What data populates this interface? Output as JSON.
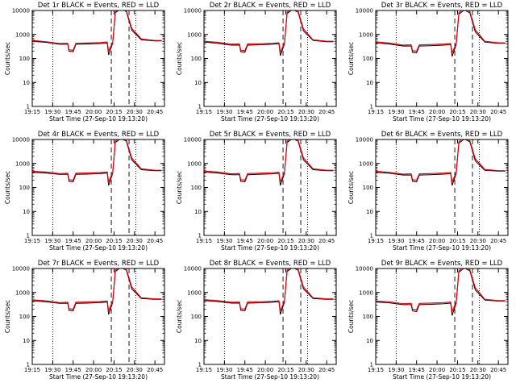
{
  "xtick_labels": [
    "19:15",
    "19:30",
    "19:45",
    "20:00",
    "20:15",
    "20:30",
    "20:45"
  ],
  "ytick_labels": [
    "1",
    "10",
    "100",
    "1000",
    "10000"
  ],
  "colors": {
    "events": "#000000",
    "lld": "#e8000b",
    "axes": "#000000",
    "background": "#ffffff"
  },
  "chart_data": [
    {
      "type": "line",
      "title": "Det 1r BLACK = Events, RED = LLD",
      "xlabel": "Start Time (27-Sep-10 19:13:20)",
      "ylabel": "Counts/sec",
      "yscale": "log",
      "ylim": [
        1,
        10000
      ],
      "xlim": [
        "19:15",
        "20:52"
      ],
      "x": [
        "19:15",
        "19:25",
        "19:35",
        "19:41",
        "19:42",
        "19:45",
        "19:47",
        "19:55",
        "20:05",
        "20:10",
        "20:11",
        "20:14",
        "20:16",
        "20:20",
        "20:24",
        "20:28",
        "20:35",
        "20:45",
        "20:50"
      ],
      "series": [
        {
          "name": "BLACK = Events",
          "values": [
            520,
            470,
            390,
            390,
            200,
            190,
            390,
            400,
            420,
            440,
            140,
            430,
            8000,
            12000,
            9000,
            1500,
            600,
            540,
            540
          ]
        },
        {
          "name": "RED = LLD",
          "values": [
            560,
            500,
            420,
            430,
            230,
            220,
            430,
            440,
            460,
            480,
            200,
            470,
            9000,
            14000,
            10000,
            1800,
            650,
            560,
            560
          ]
        }
      ],
      "vlines": {
        "dotted": [
          "19:30",
          "20:31"
        ],
        "dashed": [
          "20:13",
          "20:26"
        ]
      }
    },
    {
      "type": "line",
      "title": "Det 2r BLACK = Events, RED = LLD",
      "xlabel": "Start Time (27-Sep-10 19:13:20)",
      "ylabel": "Counts/sec",
      "yscale": "log",
      "ylim": [
        1,
        10000
      ],
      "xlim": [
        "19:15",
        "20:52"
      ],
      "x": [
        "19:15",
        "19:25",
        "19:35",
        "19:41",
        "19:42",
        "19:45",
        "19:47",
        "19:55",
        "20:05",
        "20:10",
        "20:11",
        "20:14",
        "20:16",
        "20:20",
        "20:24",
        "20:28",
        "20:35",
        "20:45",
        "20:50"
      ],
      "series": [
        {
          "name": "BLACK = Events",
          "values": [
            480,
            430,
            360,
            360,
            190,
            180,
            360,
            370,
            390,
            410,
            130,
            400,
            7500,
            11000,
            8500,
            1400,
            560,
            500,
            500
          ]
        },
        {
          "name": "RED = LLD",
          "values": [
            520,
            470,
            390,
            400,
            220,
            210,
            400,
            410,
            430,
            450,
            180,
            440,
            8500,
            13000,
            9500,
            1700,
            600,
            520,
            520
          ]
        }
      ],
      "vlines": {
        "dotted": [
          "19:30",
          "20:31"
        ],
        "dashed": [
          "20:13",
          "20:26"
        ]
      }
    },
    {
      "type": "line",
      "title": "Det 3r BLACK = Events, RED = LLD",
      "xlabel": "Start Time (27-Sep-10 19:13:20)",
      "ylabel": "Counts/sec",
      "yscale": "log",
      "ylim": [
        1,
        10000
      ],
      "xlim": [
        "19:15",
        "20:52"
      ],
      "x": [
        "19:15",
        "19:25",
        "19:35",
        "19:41",
        "19:42",
        "19:45",
        "19:47",
        "19:55",
        "20:05",
        "20:10",
        "20:11",
        "20:14",
        "20:16",
        "20:20",
        "20:24",
        "20:28",
        "20:35",
        "20:45",
        "20:50"
      ],
      "series": [
        {
          "name": "BLACK = Events",
          "values": [
            450,
            400,
            330,
            330,
            180,
            170,
            330,
            340,
            360,
            380,
            120,
            370,
            7000,
            10500,
            8000,
            1300,
            480,
            430,
            430
          ]
        },
        {
          "name": "RED = LLD",
          "values": [
            490,
            440,
            360,
            370,
            210,
            200,
            370,
            380,
            400,
            420,
            170,
            410,
            8000,
            12500,
            9000,
            1600,
            520,
            450,
            450
          ]
        }
      ],
      "vlines": {
        "dotted": [
          "19:30",
          "20:31"
        ],
        "dashed": [
          "20:13",
          "20:26"
        ]
      }
    },
    {
      "type": "line",
      "title": "Det 4r BLACK = Events, RED = LLD",
      "xlabel": "Start Time (27-Sep-10 19:13:20)",
      "ylabel": "Counts/sec",
      "yscale": "log",
      "ylim": [
        1,
        10000
      ],
      "xlim": [
        "19:15",
        "20:52"
      ],
      "x": [
        "19:15",
        "19:25",
        "19:35",
        "19:41",
        "19:42",
        "19:45",
        "19:47",
        "19:55",
        "20:05",
        "20:10",
        "20:11",
        "20:14",
        "20:16",
        "20:20",
        "20:24",
        "20:28",
        "20:35",
        "20:45",
        "20:50"
      ],
      "series": [
        {
          "name": "BLACK = Events",
          "values": [
            430,
            400,
            350,
            350,
            180,
            170,
            350,
            360,
            380,
            400,
            120,
            390,
            7500,
            11000,
            8500,
            1400,
            550,
            500,
            500
          ]
        },
        {
          "name": "RED = LLD",
          "values": [
            470,
            440,
            380,
            390,
            210,
            200,
            390,
            400,
            420,
            440,
            170,
            430,
            8500,
            13000,
            9500,
            1700,
            600,
            520,
            520
          ]
        }
      ],
      "vlines": {
        "dotted": [
          "19:30",
          "20:31"
        ],
        "dashed": [
          "20:13",
          "20:26"
        ]
      }
    },
    {
      "type": "line",
      "title": "Det 5r BLACK = Events, RED = LLD",
      "xlabel": "Start Time (27-Sep-10 19:13:20)",
      "ylabel": "Counts/sec",
      "yscale": "log",
      "ylim": [
        1,
        10000
      ],
      "xlim": [
        "19:15",
        "20:52"
      ],
      "x": [
        "19:15",
        "19:25",
        "19:35",
        "19:41",
        "19:42",
        "19:45",
        "19:47",
        "19:55",
        "20:05",
        "20:10",
        "20:11",
        "20:14",
        "20:16",
        "20:20",
        "20:24",
        "20:28",
        "20:35",
        "20:45",
        "20:50"
      ],
      "series": [
        {
          "name": "BLACK = Events",
          "values": [
            440,
            400,
            340,
            340,
            180,
            170,
            340,
            350,
            370,
            390,
            120,
            380,
            7500,
            11000,
            8500,
            1400,
            550,
            500,
            500
          ]
        },
        {
          "name": "RED = LLD",
          "values": [
            480,
            440,
            370,
            380,
            210,
            200,
            380,
            390,
            410,
            430,
            170,
            420,
            8500,
            13000,
            9500,
            1700,
            600,
            520,
            520
          ]
        }
      ],
      "vlines": {
        "dotted": [
          "19:30",
          "20:31"
        ],
        "dashed": [
          "20:13",
          "20:26"
        ]
      }
    },
    {
      "type": "line",
      "title": "Det 6r BLACK = Events, RED = LLD",
      "xlabel": "Start Time (27-Sep-10 19:13:20)",
      "ylabel": "Counts/sec",
      "yscale": "log",
      "ylim": [
        1,
        10000
      ],
      "xlim": [
        "19:15",
        "20:52"
      ],
      "x": [
        "19:15",
        "19:25",
        "19:35",
        "19:41",
        "19:42",
        "19:45",
        "19:47",
        "19:55",
        "20:05",
        "20:10",
        "20:11",
        "20:14",
        "20:16",
        "20:20",
        "20:24",
        "20:28",
        "20:35",
        "20:45",
        "20:50"
      ],
      "series": [
        {
          "name": "BLACK = Events",
          "values": [
            430,
            390,
            330,
            330,
            180,
            170,
            330,
            340,
            360,
            380,
            120,
            370,
            7000,
            10500,
            8000,
            1300,
            520,
            480,
            480
          ]
        },
        {
          "name": "RED = LLD",
          "values": [
            470,
            430,
            360,
            370,
            210,
            200,
            370,
            380,
            400,
            420,
            170,
            410,
            8000,
            12500,
            9000,
            1600,
            560,
            500,
            500
          ]
        }
      ],
      "vlines": {
        "dotted": [
          "19:30",
          "20:31"
        ],
        "dashed": [
          "20:13",
          "20:26"
        ]
      }
    },
    {
      "type": "line",
      "title": "Det 7r BLACK = Events, RED = LLD",
      "xlabel": "Start Time (27-Sep-10 19:13:20)",
      "ylabel": "Counts/sec",
      "yscale": "log",
      "ylim": [
        1,
        10000
      ],
      "xlim": [
        "19:15",
        "20:52"
      ],
      "x": [
        "19:15",
        "19:25",
        "19:35",
        "19:41",
        "19:42",
        "19:45",
        "19:47",
        "19:55",
        "20:05",
        "20:10",
        "20:11",
        "20:14",
        "20:16",
        "20:20",
        "20:24",
        "20:28",
        "20:35",
        "20:45",
        "20:50"
      ],
      "series": [
        {
          "name": "BLACK = Events",
          "values": [
            450,
            410,
            350,
            350,
            180,
            170,
            350,
            360,
            380,
            400,
            120,
            390,
            7500,
            11000,
            8500,
            1400,
            560,
            520,
            520
          ]
        },
        {
          "name": "RED = LLD",
          "values": [
            490,
            450,
            380,
            390,
            210,
            200,
            390,
            400,
            420,
            440,
            170,
            430,
            8500,
            13000,
            9500,
            1700,
            600,
            540,
            540
          ]
        }
      ],
      "vlines": {
        "dotted": [
          "19:30",
          "20:31"
        ],
        "dashed": [
          "20:13",
          "20:26"
        ]
      }
    },
    {
      "type": "line",
      "title": "Det 8r BLACK = Events, RED = LLD",
      "xlabel": "Start Time (27-Sep-10 19:13:20)",
      "ylabel": "Counts/sec",
      "yscale": "log",
      "ylim": [
        1,
        10000
      ],
      "xlim": [
        "19:15",
        "20:52"
      ],
      "x": [
        "19:15",
        "19:25",
        "19:35",
        "19:41",
        "19:42",
        "19:45",
        "19:47",
        "19:55",
        "20:05",
        "20:10",
        "20:11",
        "20:14",
        "20:16",
        "20:20",
        "20:24",
        "20:28",
        "20:35",
        "20:45",
        "20:50"
      ],
      "series": [
        {
          "name": "BLACK = Events",
          "values": [
            460,
            420,
            360,
            360,
            180,
            170,
            360,
            370,
            390,
            410,
            120,
            400,
            7500,
            11000,
            8500,
            1400,
            560,
            520,
            520
          ]
        },
        {
          "name": "RED = LLD",
          "values": [
            500,
            460,
            390,
            400,
            210,
            200,
            400,
            410,
            430,
            450,
            170,
            440,
            8500,
            13000,
            9500,
            1700,
            600,
            540,
            540
          ]
        }
      ],
      "vlines": {
        "dotted": [
          "19:30",
          "20:31"
        ],
        "dashed": [
          "20:13",
          "20:26"
        ]
      }
    },
    {
      "type": "line",
      "title": "Det 9r BLACK = Events, RED = LLD",
      "xlabel": "Start Time (27-Sep-10 19:13:20)",
      "ylabel": "Counts/sec",
      "yscale": "log",
      "ylim": [
        1,
        10000
      ],
      "xlim": [
        "19:15",
        "20:52"
      ],
      "x": [
        "19:15",
        "19:25",
        "19:35",
        "19:41",
        "19:42",
        "19:45",
        "19:47",
        "19:55",
        "20:05",
        "20:10",
        "20:11",
        "20:14",
        "20:16",
        "20:20",
        "20:24",
        "20:28",
        "20:35",
        "20:45",
        "20:50"
      ],
      "series": [
        {
          "name": "BLACK = Events",
          "values": [
            400,
            370,
            310,
            310,
            170,
            160,
            310,
            320,
            340,
            360,
            110,
            350,
            7000,
            10500,
            8000,
            1300,
            480,
            440,
            440
          ]
        },
        {
          "name": "RED = LLD",
          "values": [
            440,
            410,
            340,
            350,
            200,
            190,
            350,
            360,
            380,
            400,
            160,
            390,
            8000,
            12500,
            9000,
            1600,
            520,
            460,
            460
          ]
        }
      ],
      "vlines": {
        "dotted": [
          "19:30",
          "20:31"
        ],
        "dashed": [
          "20:13",
          "20:26"
        ]
      }
    }
  ]
}
